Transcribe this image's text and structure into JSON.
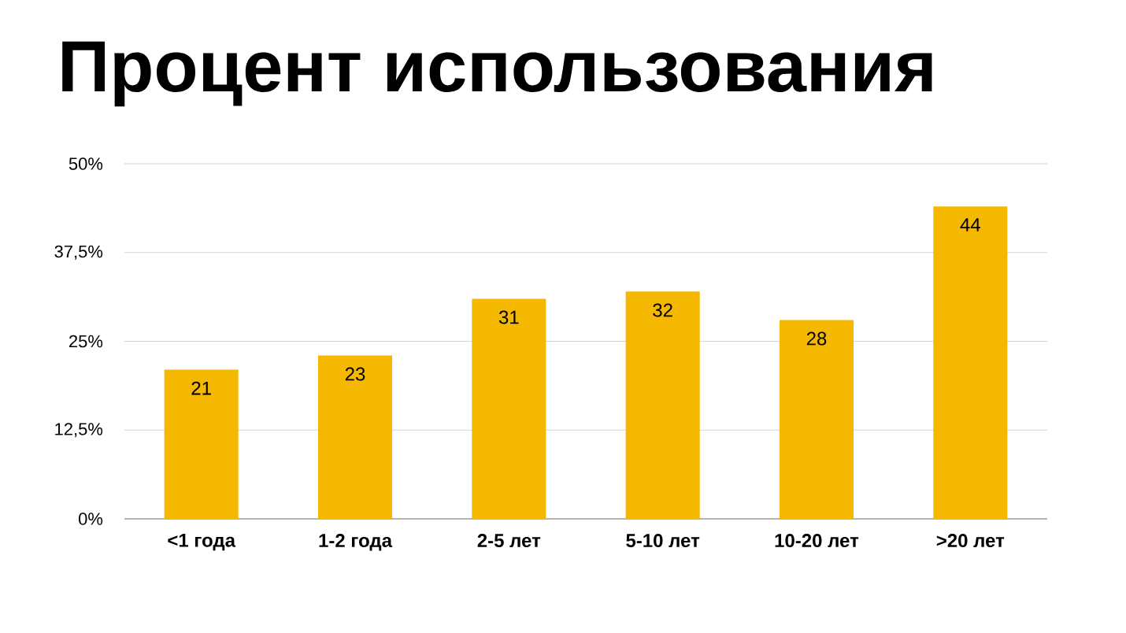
{
  "chart_data": {
    "type": "bar",
    "title": "Процент использования",
    "categories": [
      "<1 года",
      "1-2 года",
      "2-5 лет",
      "5-10 лет",
      "10-20 лет",
      ">20 лет"
    ],
    "values": [
      21,
      23,
      31,
      32,
      28,
      44
    ],
    "color": "#f5b800",
    "ylim": [
      0,
      50
    ],
    "yticks": [
      {
        "value": 0,
        "label": "0%"
      },
      {
        "value": 12.5,
        "label": "12,5%"
      },
      {
        "value": 25,
        "label": "25%"
      },
      {
        "value": 37.5,
        "label": "37,5%"
      },
      {
        "value": 50,
        "label": "50%"
      }
    ],
    "grid": "y",
    "data_labels": true
  }
}
